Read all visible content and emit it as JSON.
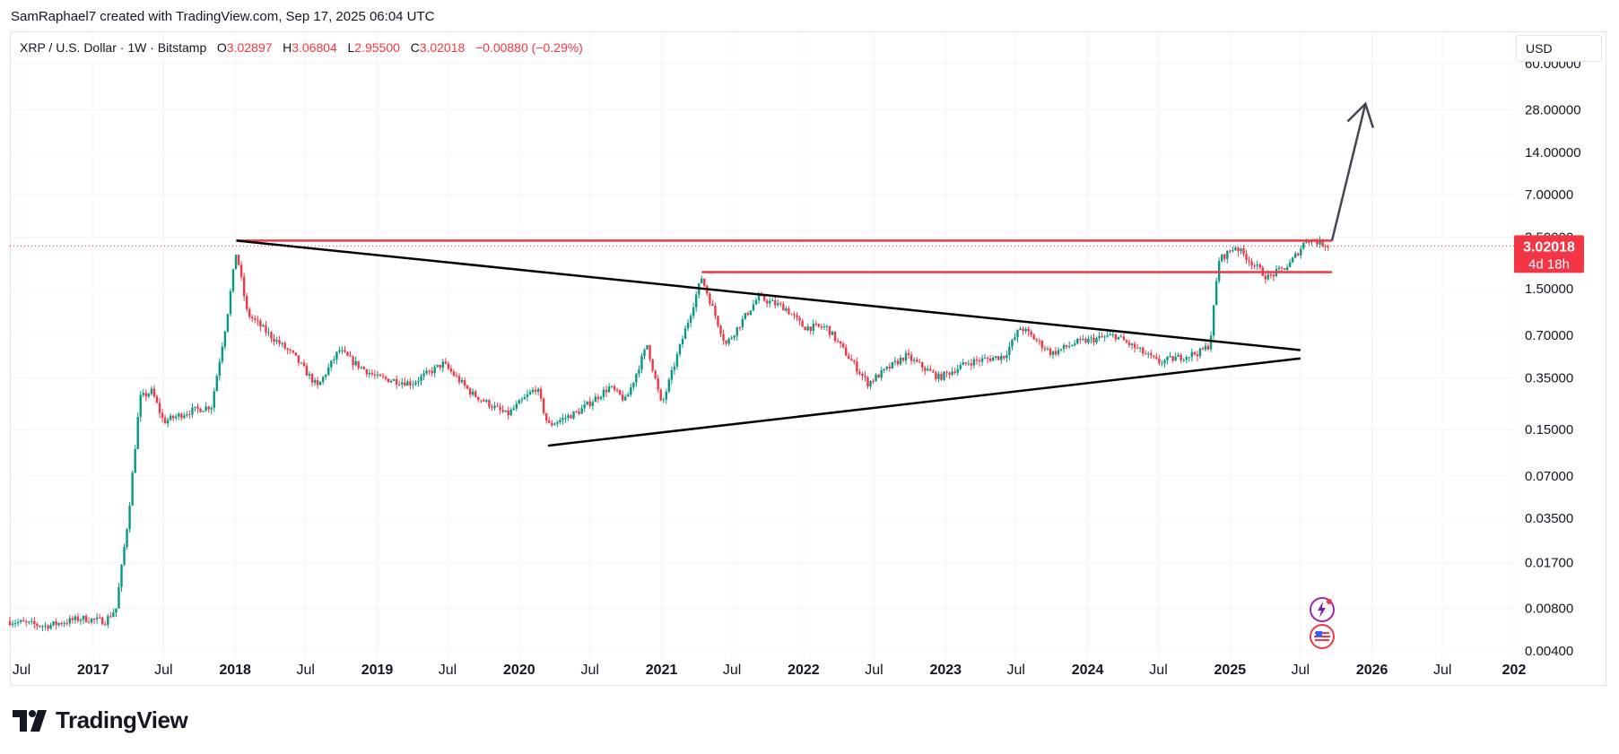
{
  "header": {
    "credit": "SamRaphael7 created with TradingView.com, Sep 17, 2025 06:04 UTC"
  },
  "legend": {
    "symbol": "XRP / U.S. Dollar · 1W · Bitstamp",
    "o_label": "O",
    "o_value": "3.02897",
    "h_label": "H",
    "h_value": "3.06804",
    "l_label": "L",
    "l_value": "2.95500",
    "c_label": "C",
    "c_value": "3.02018",
    "change": "−0.00880 (−0.29%)"
  },
  "currency_button": "USD",
  "price_tag": {
    "price": "3.02018",
    "countdown": "4d 18h"
  },
  "brand": {
    "logo_text": "TradingView"
  },
  "colors": {
    "up": "#089981",
    "down": "#f23645",
    "resistance": "#f23645",
    "trendline": "#000000",
    "arrow": "#434651",
    "price_tag": "#f23645"
  },
  "chart_data": {
    "type": "candlestick",
    "title": "",
    "scale": "log",
    "y_tick_labels": [
      "60.00000",
      "28.00000",
      "14.00000",
      "7.00000",
      "3.50000",
      "1.50000",
      "0.70000",
      "0.35000",
      "0.15000",
      "0.07000",
      "0.03500",
      "0.01700",
      "0.00800",
      "0.00400"
    ],
    "x_tick_labels": [
      "Jul",
      "2017",
      "Jul",
      "2018",
      "Jul",
      "2019",
      "Jul",
      "2020",
      "Jul",
      "2021",
      "Jul",
      "2022",
      "Jul",
      "2023",
      "Jul",
      "2024",
      "Jul",
      "2025",
      "Jul",
      "2026",
      "Jul",
      "202"
    ],
    "x_tick_dates": [
      "2016-07-01",
      "2017-01-01",
      "2017-07-01",
      "2018-01-01",
      "2018-07-01",
      "2019-01-01",
      "2019-07-01",
      "2020-01-01",
      "2020-07-01",
      "2021-01-01",
      "2021-07-01",
      "2022-01-01",
      "2022-07-01",
      "2023-01-01",
      "2023-07-01",
      "2024-01-01",
      "2024-07-01",
      "2025-01-01",
      "2025-07-01",
      "2026-01-01",
      "2026-07-01",
      "2027-01-01"
    ],
    "y_range": [
      0.0035,
      100
    ],
    "x_range": [
      "2016-06-01",
      "2027-01-01"
    ],
    "grid": true,
    "current_price": 3.02018,
    "price_path": [
      [
        "2016-06-01",
        0.0065
      ],
      [
        "2016-09-01",
        0.006
      ],
      [
        "2016-12-01",
        0.0068
      ],
      [
        "2017-02-01",
        0.0065
      ],
      [
        "2017-03-01",
        0.008
      ],
      [
        "2017-04-01",
        0.035
      ],
      [
        "2017-05-01",
        0.25
      ],
      [
        "2017-06-01",
        0.28
      ],
      [
        "2017-07-01",
        0.17
      ],
      [
        "2017-09-01",
        0.2
      ],
      [
        "2017-11-01",
        0.22
      ],
      [
        "2017-12-10",
        0.9
      ],
      [
        "2018-01-04",
        2.8
      ],
      [
        "2018-02-01",
        1.0
      ],
      [
        "2018-04-01",
        0.7
      ],
      [
        "2018-06-01",
        0.5
      ],
      [
        "2018-08-01",
        0.3
      ],
      [
        "2018-09-25",
        0.55
      ],
      [
        "2018-11-01",
        0.45
      ],
      [
        "2019-01-01",
        0.35
      ],
      [
        "2019-04-01",
        0.32
      ],
      [
        "2019-06-20",
        0.44
      ],
      [
        "2019-09-01",
        0.27
      ],
      [
        "2019-12-01",
        0.19
      ],
      [
        "2020-02-15",
        0.3
      ],
      [
        "2020-03-15",
        0.16
      ],
      [
        "2020-06-01",
        0.2
      ],
      [
        "2020-08-20",
        0.3
      ],
      [
        "2020-10-01",
        0.24
      ],
      [
        "2020-11-25",
        0.6
      ],
      [
        "2021-01-01",
        0.22
      ],
      [
        "2021-02-10",
        0.5
      ],
      [
        "2021-04-14",
        1.8
      ],
      [
        "2021-06-15",
        0.6
      ],
      [
        "2021-09-06",
        1.3
      ],
      [
        "2021-11-15",
        1.1
      ],
      [
        "2022-01-01",
        0.8
      ],
      [
        "2022-03-01",
        0.8
      ],
      [
        "2022-06-15",
        0.32
      ],
      [
        "2022-09-20",
        0.5
      ],
      [
        "2022-12-15",
        0.35
      ],
      [
        "2023-03-01",
        0.45
      ],
      [
        "2023-06-01",
        0.5
      ],
      [
        "2023-07-13",
        0.8
      ],
      [
        "2023-10-01",
        0.52
      ],
      [
        "2023-12-01",
        0.62
      ],
      [
        "2024-03-11",
        0.7
      ],
      [
        "2024-07-01",
        0.45
      ],
      [
        "2024-10-15",
        0.53
      ],
      [
        "2024-11-10",
        0.6
      ],
      [
        "2024-12-03",
        2.4
      ],
      [
        "2025-01-15",
        3.0
      ],
      [
        "2025-04-07",
        1.8
      ],
      [
        "2025-06-01",
        2.2
      ],
      [
        "2025-07-18",
        3.4
      ],
      [
        "2025-09-15",
        3.02
      ]
    ],
    "annotations": {
      "resistance_upper": {
        "from": "2018-01-04",
        "to": "2025-09-20",
        "value": 3.3
      },
      "resistance_lower": {
        "from": "2021-04-14",
        "to": "2025-09-20",
        "value": 1.97
      },
      "trendline_upper": {
        "from": [
          "2018-01-04",
          3.3
        ],
        "to": [
          "2025-07-01",
          0.55
        ]
      },
      "trendline_lower": {
        "from": [
          "2020-03-15",
          0.115
        ],
        "to": [
          "2025-07-01",
          0.48
        ]
      },
      "projection_arrow": {
        "from": [
          "2025-09-20",
          3.3
        ],
        "to": [
          "2025-12-15",
          31.0
        ]
      }
    }
  }
}
